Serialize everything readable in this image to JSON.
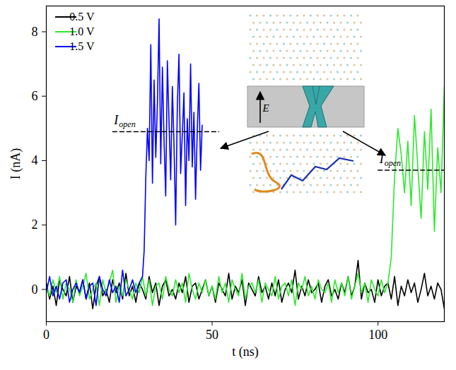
{
  "chart_data": {
    "type": "line",
    "x_label": "t (ns)",
    "y_label": "I (nA)",
    "xlim": [
      0,
      120
    ],
    "xticks": [
      0,
      50,
      100
    ],
    "ylim": [
      -1,
      8.8
    ],
    "yticks": [
      0,
      2,
      4,
      6,
      8
    ],
    "legend": "top-left",
    "inset_label": "E",
    "annotations": [
      {
        "text": "I",
        "subscript": "open",
        "y": 4.9,
        "x_range": [
          20,
          52
        ]
      },
      {
        "text": "I",
        "subscript": "open",
        "y": 3.7,
        "x_range": [
          100,
          120
        ]
      }
    ],
    "series": [
      {
        "name": "0.5 V",
        "color": "#000000",
        "x": [
          0,
          1,
          2,
          3,
          4,
          5,
          6,
          7,
          8,
          9,
          10,
          11,
          12,
          13,
          14,
          15,
          16,
          17,
          18,
          19,
          20,
          21,
          22,
          23,
          24,
          25,
          26,
          27,
          28,
          29,
          30,
          31,
          32,
          33,
          34,
          35,
          36,
          37,
          38,
          39,
          40,
          41,
          42,
          43,
          44,
          45,
          46,
          47,
          48,
          49,
          50,
          51,
          52,
          53,
          54,
          55,
          56,
          57,
          58,
          59,
          60,
          61,
          62,
          63,
          64,
          65,
          66,
          67,
          68,
          69,
          70,
          71,
          72,
          73,
          74,
          75,
          76,
          77,
          78,
          79,
          80,
          81,
          82,
          83,
          84,
          85,
          86,
          87,
          88,
          89,
          90,
          91,
          92,
          93,
          94,
          95,
          96,
          97,
          98,
          99,
          100,
          101,
          102,
          103,
          104,
          105,
          106,
          107,
          108,
          109,
          110,
          111,
          112,
          113,
          114,
          115,
          116,
          117,
          118,
          119,
          120
        ],
        "values": [
          0.2,
          -0.3,
          0.1,
          -0.5,
          0.3,
          0,
          -0.2,
          0.4,
          -0.4,
          0.1,
          -0.1,
          0.3,
          -0.3,
          0.2,
          -0.6,
          0.1,
          0.4,
          -0.2,
          0,
          -0.4,
          0.3,
          -0.1,
          0.2,
          -0.3,
          0.5,
          -0.2,
          0.1,
          -0.4,
          0.2,
          0,
          -0.3,
          0.4,
          -0.1,
          0.2,
          -0.5,
          0.1,
          0.3,
          -0.2,
          0,
          -0.3,
          0.2,
          -0.1,
          0.4,
          -0.4,
          0.1,
          0.2,
          -0.3,
          0,
          0.3,
          -0.2,
          0.1,
          -0.4,
          0.2,
          0,
          -0.2,
          0.5,
          -0.3,
          0.1,
          -0.1,
          0.3,
          -0.5,
          0.2,
          0,
          -0.2,
          0.4,
          -0.1,
          0.1,
          -0.3,
          0.2,
          -0.2,
          0.3,
          -0.4,
          0,
          0.2,
          -0.1,
          0.6,
          -0.3,
          0.1,
          -0.2,
          0.3,
          -0.1,
          0,
          0.2,
          -0.4,
          0.1,
          0.3,
          -0.2,
          0,
          -0.3,
          0.2,
          -0.1,
          0.4,
          -0.2,
          0.1,
          0.9,
          -0.3,
          0.2,
          -0.1,
          0,
          -0.4,
          0.3,
          -0.2,
          0.1,
          0.2,
          -0.3,
          0.4,
          -0.5,
          0.1,
          -0.2,
          0.3,
          -0.1,
          0.2,
          -0.4,
          0,
          0.5,
          -0.2,
          0.1,
          -0.3,
          0.2,
          0,
          -0.6
        ]
      },
      {
        "name": "1.0 V",
        "color": "#2ee82e",
        "x": [
          0,
          1,
          2,
          3,
          4,
          5,
          6,
          7,
          8,
          9,
          10,
          11,
          12,
          13,
          14,
          15,
          16,
          17,
          18,
          19,
          20,
          21,
          22,
          23,
          24,
          25,
          26,
          27,
          28,
          29,
          30,
          31,
          32,
          33,
          34,
          35,
          36,
          37,
          38,
          39,
          40,
          41,
          42,
          43,
          44,
          45,
          46,
          47,
          48,
          49,
          50,
          51,
          52,
          53,
          54,
          55,
          56,
          57,
          58,
          59,
          60,
          61,
          62,
          63,
          64,
          65,
          66,
          67,
          68,
          69,
          70,
          71,
          72,
          73,
          74,
          75,
          76,
          77,
          78,
          79,
          80,
          81,
          82,
          83,
          84,
          85,
          86,
          87,
          88,
          89,
          90,
          91,
          92,
          93,
          94,
          95,
          96,
          97,
          98,
          99,
          100,
          101,
          102,
          103,
          104,
          105,
          106,
          107,
          108,
          109,
          110,
          111,
          112,
          113,
          114,
          115,
          116,
          117,
          118,
          119,
          120
        ],
        "values": [
          0.1,
          -0.2,
          0.3,
          -0.1,
          0.4,
          -0.3,
          0.2,
          0,
          -0.4,
          0.3,
          -0.2,
          0.1,
          0.5,
          -0.3,
          0,
          0.2,
          -0.5,
          0.3,
          -0.1,
          0.2,
          0.6,
          -0.4,
          0.1,
          -0.2,
          0.3,
          0,
          -0.3,
          0.2,
          -0.1,
          0.4,
          -0.2,
          0.3,
          -0.5,
          0.1,
          0.2,
          -0.3,
          0.4,
          0,
          -0.2,
          0.3,
          -0.1,
          0.2,
          -0.4,
          0.5,
          0,
          -0.3,
          0.2,
          -0.1,
          0.3,
          -0.2,
          0.1,
          -0.3,
          0.4,
          -0.1,
          0.2,
          -0.4,
          0.3,
          0,
          -0.2,
          0.5,
          -0.3,
          0.1,
          0.2,
          -0.1,
          0.3,
          -0.4,
          0.2,
          0,
          -0.2,
          0.4,
          -0.3,
          0.1,
          0.2,
          -0.2,
          0.3,
          -0.5,
          0.2,
          0,
          0.4,
          -0.2,
          0.1,
          -0.3,
          0.3,
          0,
          -0.1,
          0.2,
          -0.4,
          0.3,
          -0.1,
          0.2,
          -0.2,
          0.4,
          -0.3,
          0.1,
          0.5,
          -0.1,
          0.2,
          -0.4,
          0.3,
          0,
          -0.2,
          0.3,
          -0.1,
          0.2,
          1.0,
          3.5,
          5.0,
          4.2,
          3.0,
          4.6,
          2.6,
          5.4,
          3.8,
          2.2,
          4.9,
          3.1,
          5.6,
          1.8,
          4.4,
          3.0,
          6.3
        ]
      },
      {
        "name": "1.5 V",
        "color": "#0000ff",
        "x": [
          0,
          1,
          2,
          3,
          4,
          5,
          6,
          7,
          8,
          9,
          10,
          11,
          12,
          13,
          14,
          15,
          16,
          17,
          18,
          19,
          20,
          21,
          22,
          23,
          24,
          25,
          26,
          27,
          28,
          29,
          29.5,
          30,
          30.5,
          31,
          31.5,
          32,
          32.5,
          33,
          33.5,
          34,
          34.5,
          35,
          35.5,
          36,
          36.5,
          37,
          37.5,
          38,
          38.5,
          39,
          39.5,
          40,
          40.5,
          41,
          41.5,
          42,
          42.5,
          43,
          43.5,
          44,
          44.5,
          45,
          45.5,
          46,
          46.5,
          47
        ],
        "values": [
          -0.1,
          0.4,
          -0.2,
          0.1,
          -0.3,
          0.2,
          0.3,
          -0.4,
          0,
          0.2,
          -0.1,
          0.3,
          -0.3,
          0.1,
          0.2,
          -0.5,
          0.4,
          0,
          -0.2,
          0.3,
          -0.1,
          0.1,
          -0.4,
          0.6,
          -0.2,
          0,
          0.3,
          -0.1,
          0.2,
          0.4,
          1.2,
          3.5,
          5.0,
          4.0,
          7.6,
          3.3,
          6.5,
          4.1,
          5.8,
          8.4,
          3.9,
          6.9,
          4.6,
          2.9,
          7.1,
          5.2,
          3.4,
          6.3,
          4.5,
          2.0,
          5.7,
          7.3,
          3.6,
          4.8,
          6.1,
          2.6,
          5.3,
          4.0,
          7.0,
          3.8,
          5.5,
          2.8,
          4.9,
          6.4,
          3.7,
          5.1
        ]
      }
    ]
  }
}
